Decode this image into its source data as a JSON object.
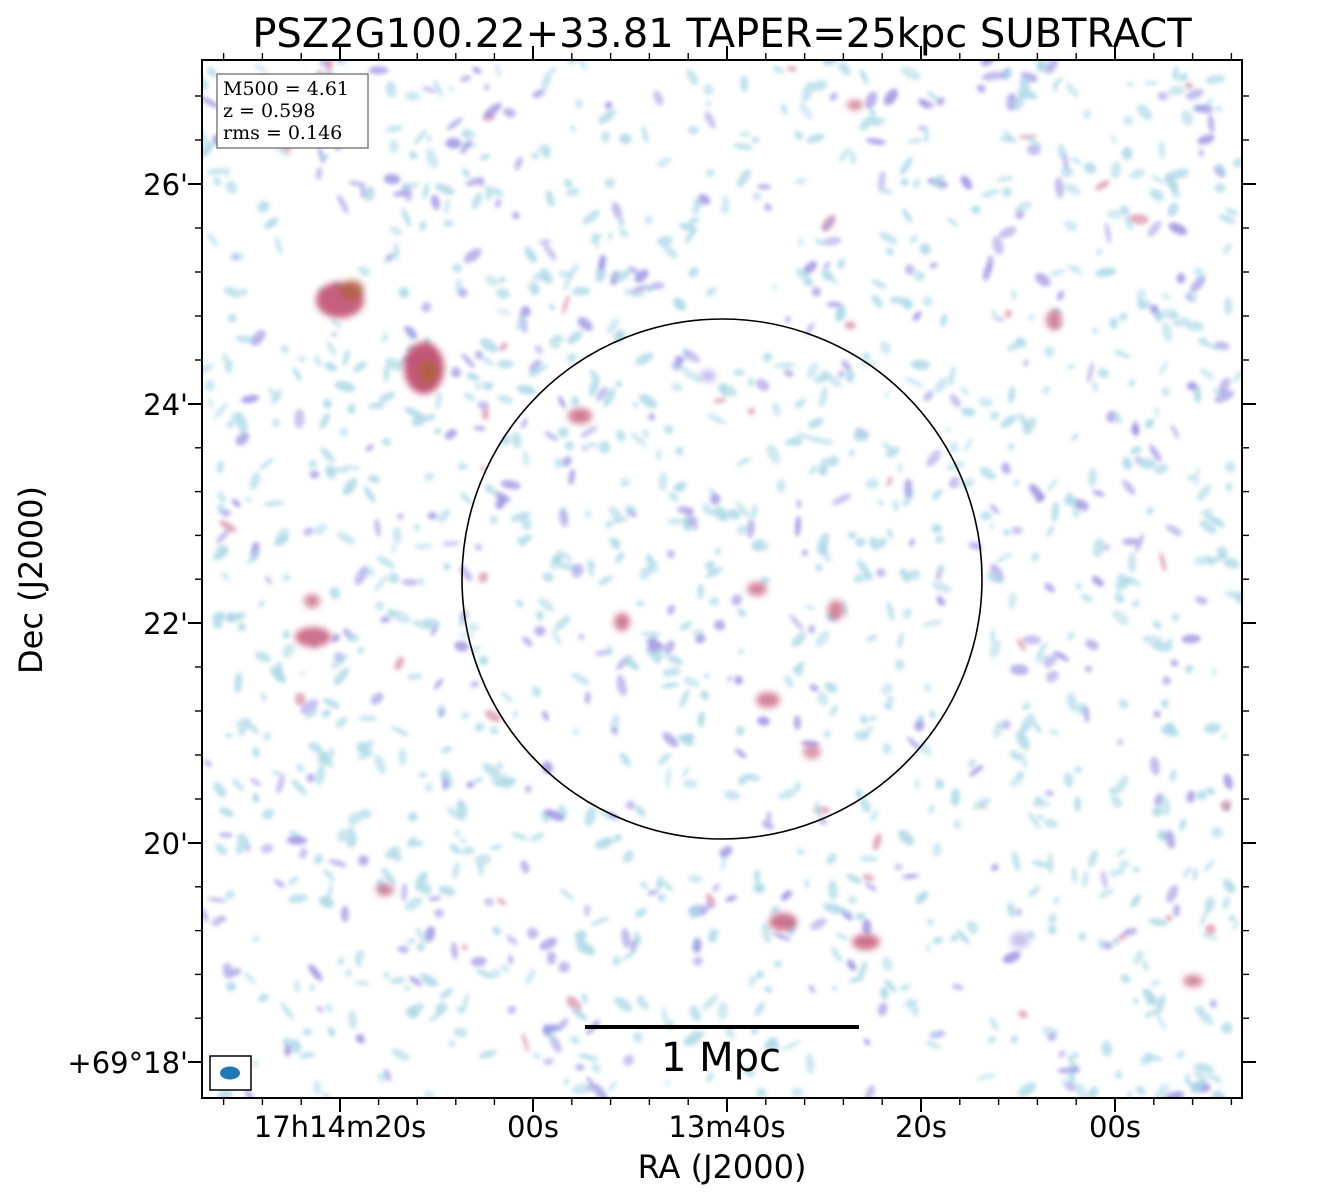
{
  "chart_data": {
    "type": "heatmap",
    "title": "PSZ2G100.22+33.81 TAPER=25kpc SUBTRACT",
    "xlabel": "RA (J2000)",
    "ylabel": "Dec (J2000)",
    "x_ticks": [
      "17h14m20s",
      "00s",
      "13m40s",
      "20s",
      "00s"
    ],
    "y_ticks": [
      "+69°18'",
      "20'",
      "22'",
      "24'",
      "26'"
    ],
    "info_box": {
      "lines": [
        "M500 = 4.61",
        "z = 0.598",
        "rms = 0.146"
      ]
    },
    "scalebar_label": "1 Mpc",
    "colors": {
      "faint": "#add8e6",
      "mid": "#9a8fe0",
      "bright": "#c05070",
      "brightest": "#b06040",
      "beam": "#1f77b4"
    }
  }
}
